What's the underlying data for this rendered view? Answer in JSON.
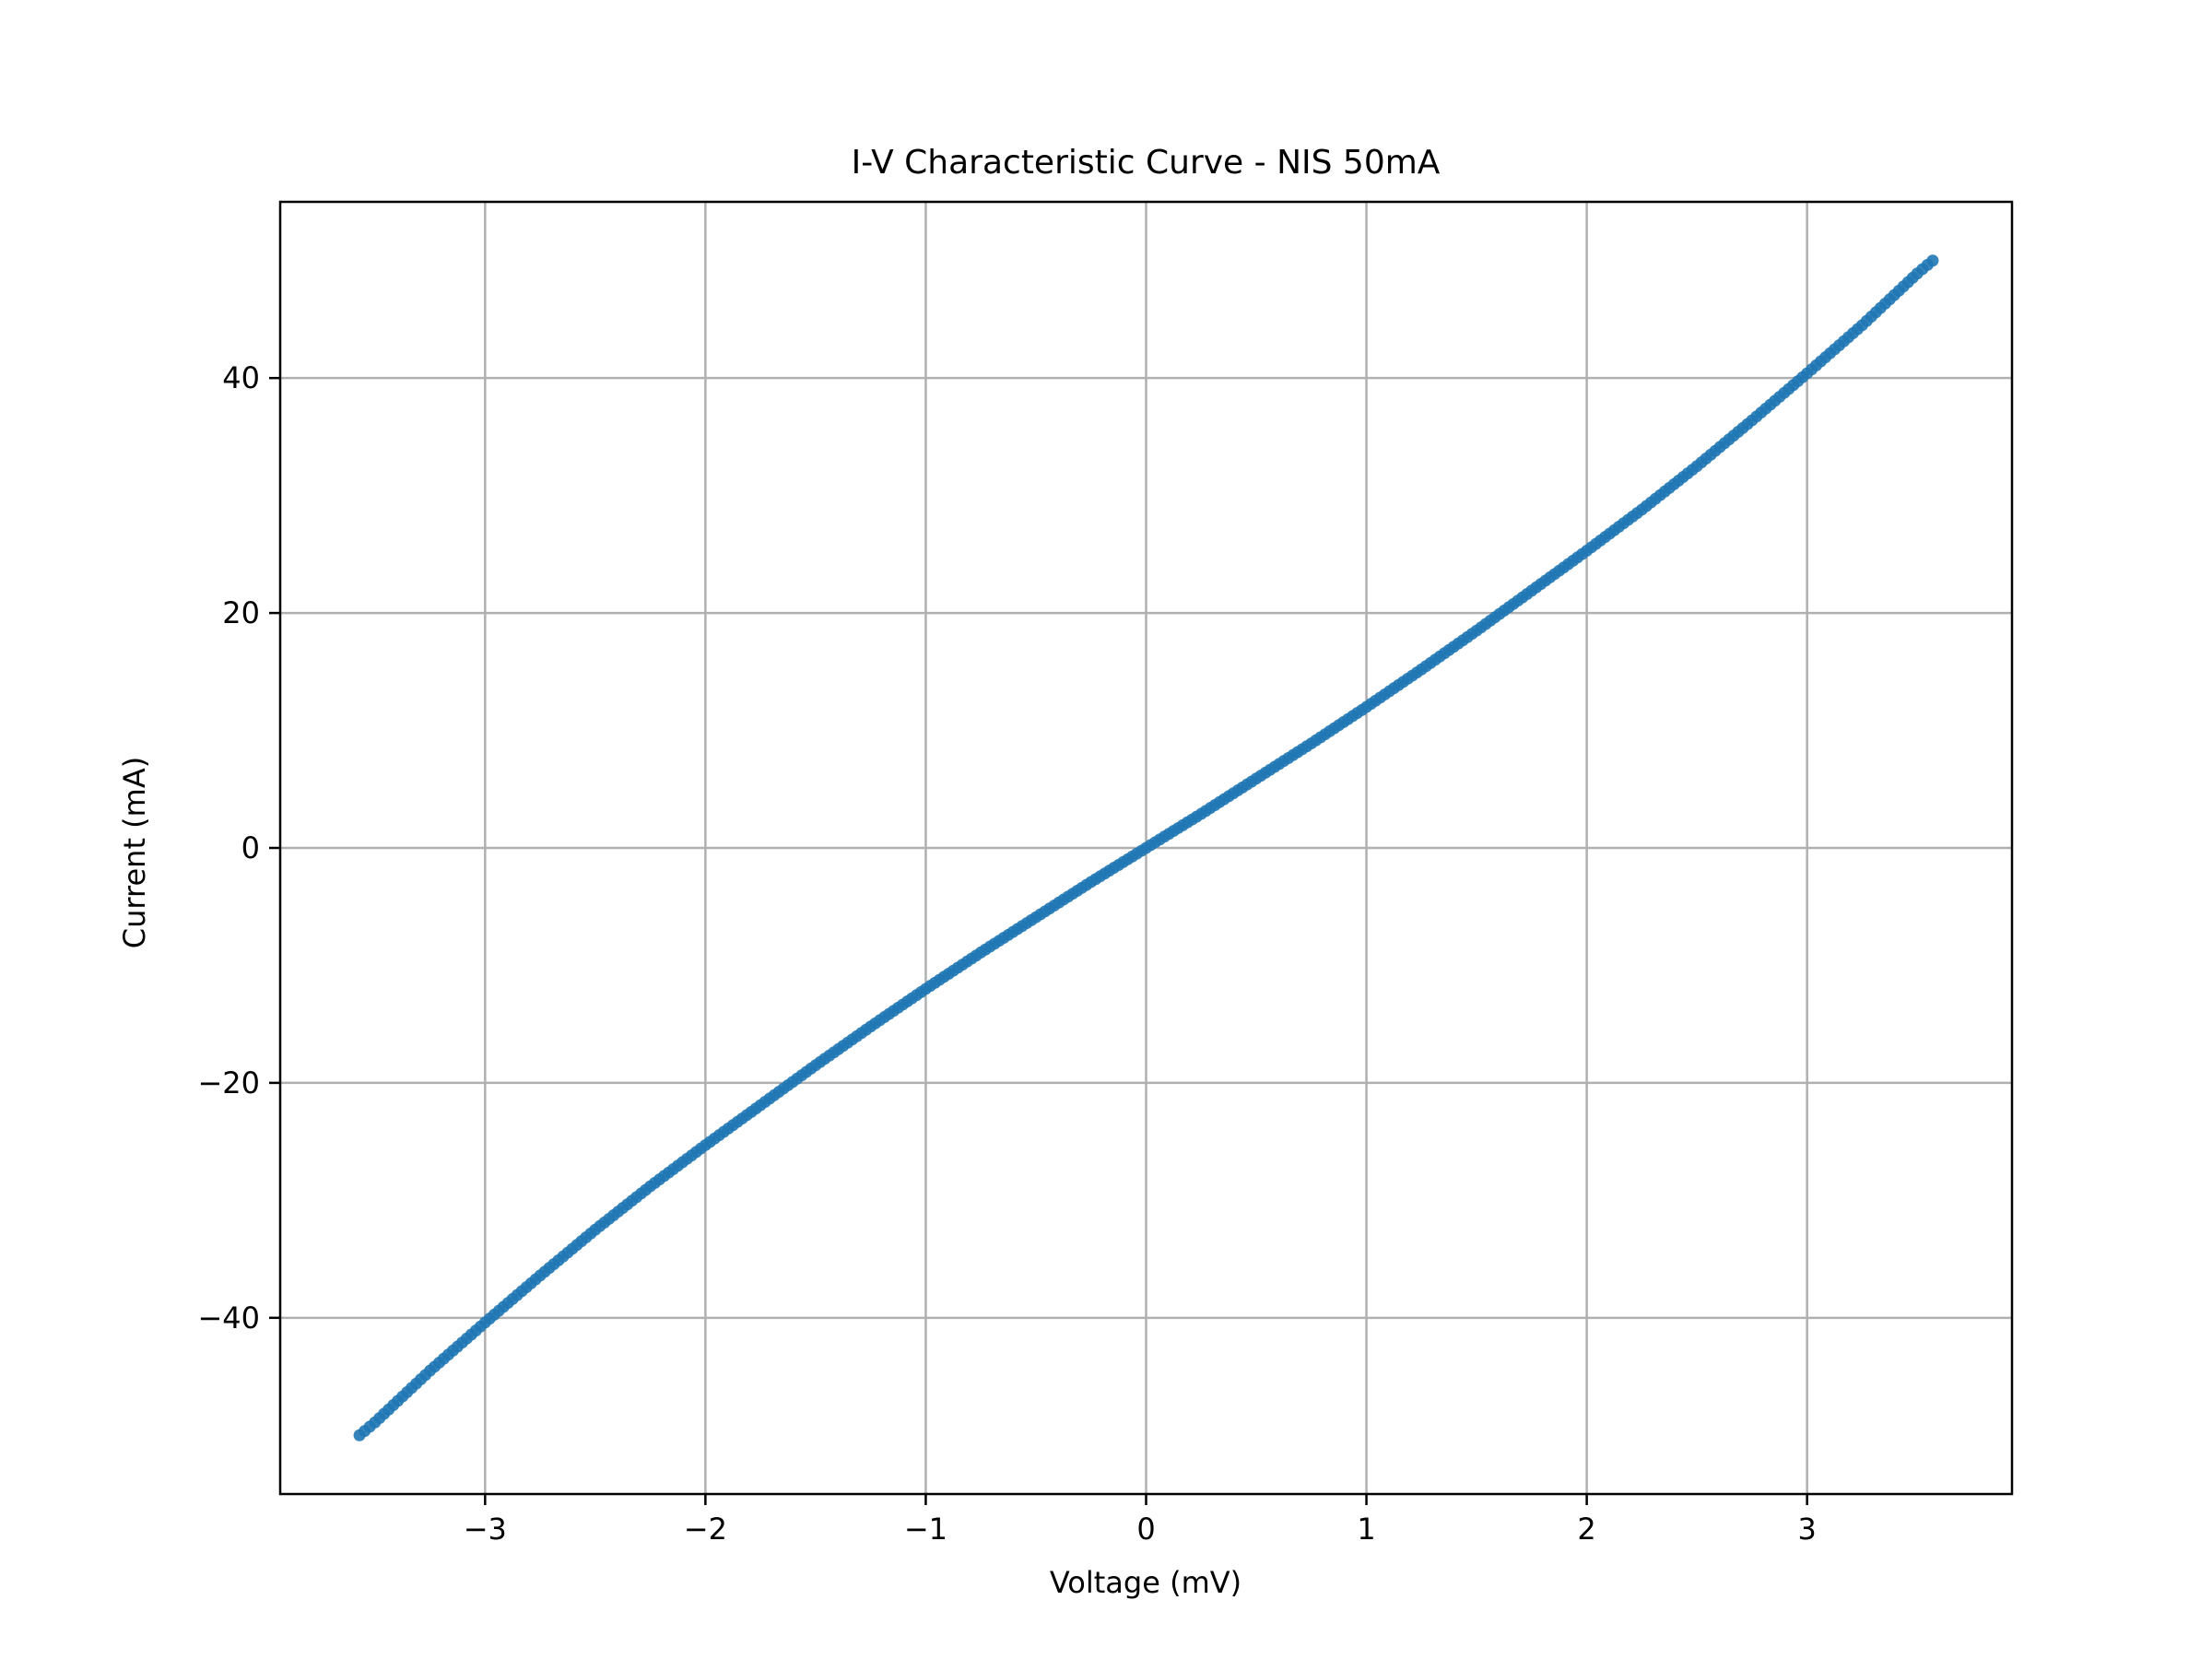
{
  "chart_data": {
    "type": "scatter",
    "title": "I-V Characteristic Curve - NIS 50mA",
    "xlabel": "Voltage (mV)",
    "ylabel": "Current (mA)",
    "xlim": [
      -3.93,
      3.93
    ],
    "ylim": [
      -55,
      55
    ],
    "xticks": [
      -3,
      -2,
      -1,
      0,
      1,
      2,
      3
    ],
    "yticks": [
      -40,
      -20,
      0,
      20,
      40
    ],
    "xtick_labels": [
      "−3",
      "−2",
      "−1",
      "0",
      "1",
      "2",
      "3"
    ],
    "ytick_labels": [
      "−40",
      "−20",
      "0",
      "20",
      "40"
    ],
    "grid": true,
    "series_color": "#1f77b4",
    "series": [
      {
        "x": [
          -3.57,
          -3.5,
          -3.25,
          -3.0,
          -2.75,
          -2.5,
          -2.25,
          -2.0,
          -1.75,
          -1.5,
          -1.25,
          -1.0,
          -0.75,
          -0.5,
          -0.25,
          0.0,
          0.25,
          0.5,
          0.75,
          1.0,
          1.25,
          1.5,
          1.75,
          2.0,
          2.25,
          2.5,
          2.75,
          3.0,
          3.25,
          3.5,
          3.57
        ],
        "y": [
          -50.0,
          -48.9,
          -44.5,
          -40.4,
          -36.4,
          -32.5,
          -28.8,
          -25.3,
          -21.9,
          -18.5,
          -15.2,
          -12.0,
          -8.9,
          -5.9,
          -2.9,
          0.0,
          2.9,
          5.9,
          8.9,
          12.0,
          15.2,
          18.5,
          21.9,
          25.3,
          28.8,
          32.5,
          36.4,
          40.4,
          44.5,
          48.9,
          50.0
        ]
      }
    ]
  }
}
